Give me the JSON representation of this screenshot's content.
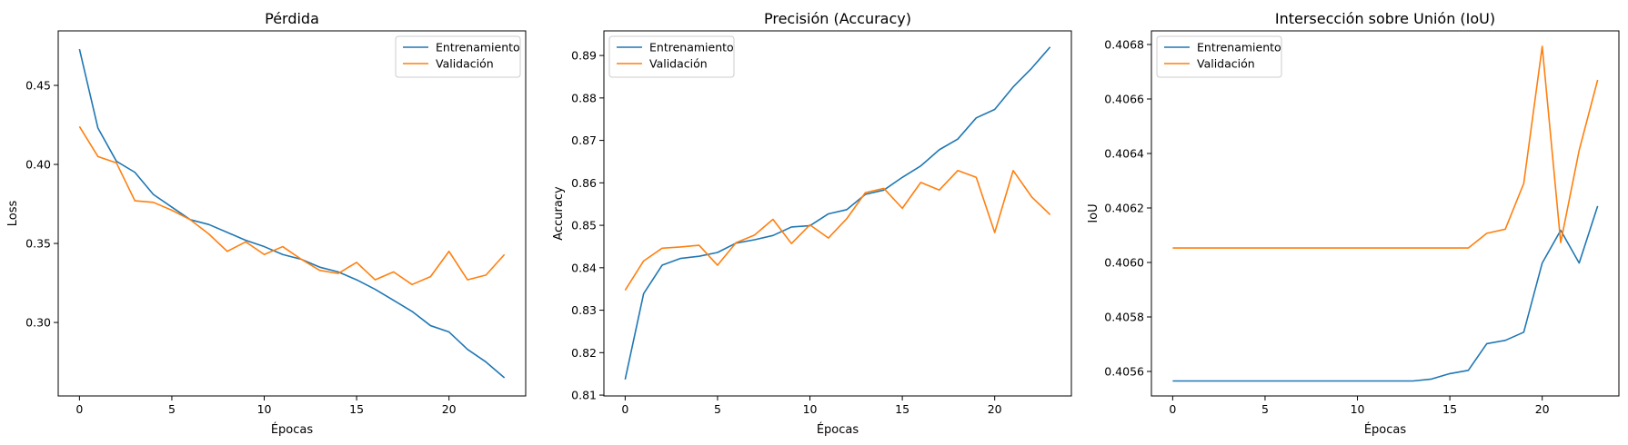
{
  "colors": {
    "train": "#1f77b4",
    "val": "#ff7f0e"
  },
  "chart_data": [
    {
      "type": "line",
      "title": "Pérdida",
      "xlabel": "Épocas",
      "ylabel": "Loss",
      "xlim": [
        -1.15,
        24.15
      ],
      "ylim": [
        0.2535,
        0.4845
      ],
      "xticks": [
        0,
        5,
        10,
        15,
        20
      ],
      "yticks": [
        0.3,
        0.35,
        0.4,
        0.45
      ],
      "ytick_labels": [
        "0.30",
        "0.35",
        "0.40",
        "0.45"
      ],
      "legend_position": "upper right",
      "x": [
        0,
        1,
        2,
        3,
        4,
        5,
        6,
        7,
        8,
        9,
        10,
        11,
        12,
        13,
        14,
        15,
        16,
        17,
        18,
        19,
        20,
        21,
        22,
        23
      ],
      "series": [
        {
          "name": "Entrenamiento",
          "color": "#1f77b4",
          "values": [
            0.473,
            0.423,
            0.402,
            0.395,
            0.381,
            0.373,
            0.365,
            0.362,
            0.357,
            0.352,
            0.348,
            0.343,
            0.34,
            0.335,
            0.332,
            0.327,
            0.321,
            0.314,
            0.307,
            0.298,
            0.294,
            0.283,
            0.275,
            0.265
          ]
        },
        {
          "name": "Validación",
          "color": "#ff7f0e",
          "values": [
            0.424,
            0.405,
            0.401,
            0.377,
            0.376,
            0.371,
            0.365,
            0.356,
            0.345,
            0.351,
            0.343,
            0.348,
            0.34,
            0.333,
            0.331,
            0.338,
            0.327,
            0.332,
            0.324,
            0.329,
            0.345,
            0.327,
            0.33,
            0.343
          ]
        }
      ]
    },
    {
      "type": "line",
      "title": "Precisión (Accuracy)",
      "xlabel": "Épocas",
      "ylabel": "Accuracy",
      "xlim": [
        -1.15,
        24.15
      ],
      "ylim": [
        0.8098,
        0.8958
      ],
      "xticks": [
        0,
        5,
        10,
        15,
        20
      ],
      "yticks": [
        0.81,
        0.82,
        0.83,
        0.84,
        0.85,
        0.86,
        0.87,
        0.88,
        0.89
      ],
      "ytick_labels": [
        "0.81",
        "0.82",
        "0.83",
        "0.84",
        "0.85",
        "0.86",
        "0.87",
        "0.88",
        "0.89"
      ],
      "legend_position": "upper left",
      "x": [
        0,
        1,
        2,
        3,
        4,
        5,
        6,
        7,
        8,
        9,
        10,
        11,
        12,
        13,
        14,
        15,
        16,
        17,
        18,
        19,
        20,
        21,
        22,
        23
      ],
      "series": [
        {
          "name": "Entrenamiento",
          "color": "#1f77b4",
          "values": [
            0.8137,
            0.8339,
            0.8406,
            0.8422,
            0.8427,
            0.8436,
            0.8458,
            0.8466,
            0.8476,
            0.8496,
            0.8499,
            0.8527,
            0.8537,
            0.8573,
            0.8583,
            0.8613,
            0.864,
            0.8678,
            0.8703,
            0.8753,
            0.8773,
            0.8826,
            0.887,
            0.892
          ]
        },
        {
          "name": "Validación",
          "color": "#ff7f0e",
          "values": [
            0.8347,
            0.8416,
            0.8446,
            0.8449,
            0.8453,
            0.8406,
            0.8459,
            0.8477,
            0.8514,
            0.8457,
            0.8501,
            0.847,
            0.8516,
            0.8577,
            0.8587,
            0.854,
            0.8601,
            0.8583,
            0.8629,
            0.8613,
            0.8483,
            0.8629,
            0.8567,
            0.8525
          ]
        }
      ]
    },
    {
      "type": "line",
      "title": "Intersección sobre Unión (IoU)",
      "xlabel": "Épocas",
      "ylabel": "IoU",
      "xlim": [
        -1.15,
        24.15
      ],
      "ylim": [
        0.40551,
        0.40685
      ],
      "xticks": [
        0,
        5,
        10,
        15,
        20
      ],
      "yticks": [
        0.4056,
        0.4058,
        0.406,
        0.4062,
        0.4064,
        0.4066,
        0.4068
      ],
      "ytick_labels": [
        "0.4056",
        "0.4058",
        "0.4060",
        "0.4062",
        "0.4064",
        "0.4066",
        "0.4068"
      ],
      "legend_position": "upper left",
      "x": [
        0,
        1,
        2,
        3,
        4,
        5,
        6,
        7,
        8,
        9,
        10,
        11,
        12,
        13,
        14,
        15,
        16,
        17,
        18,
        19,
        20,
        21,
        22,
        23
      ],
      "series": [
        {
          "name": "Entrenamiento",
          "color": "#1f77b4",
          "values": [
            0.405565,
            0.405565,
            0.405565,
            0.405565,
            0.405565,
            0.405565,
            0.405565,
            0.405565,
            0.405565,
            0.405565,
            0.405565,
            0.405565,
            0.405565,
            0.405565,
            0.405572,
            0.405592,
            0.405604,
            0.405702,
            0.405714,
            0.405744,
            0.405998,
            0.406118,
            0.405998,
            0.406207
          ]
        },
        {
          "name": "Validación",
          "color": "#ff7f0e",
          "values": [
            0.406053,
            0.406053,
            0.406053,
            0.406053,
            0.406053,
            0.406053,
            0.406053,
            0.406053,
            0.406053,
            0.406053,
            0.406053,
            0.406053,
            0.406053,
            0.406053,
            0.406053,
            0.406053,
            0.406053,
            0.406107,
            0.406122,
            0.40629,
            0.406793,
            0.406073,
            0.406412,
            0.40667
          ]
        }
      ]
    }
  ]
}
